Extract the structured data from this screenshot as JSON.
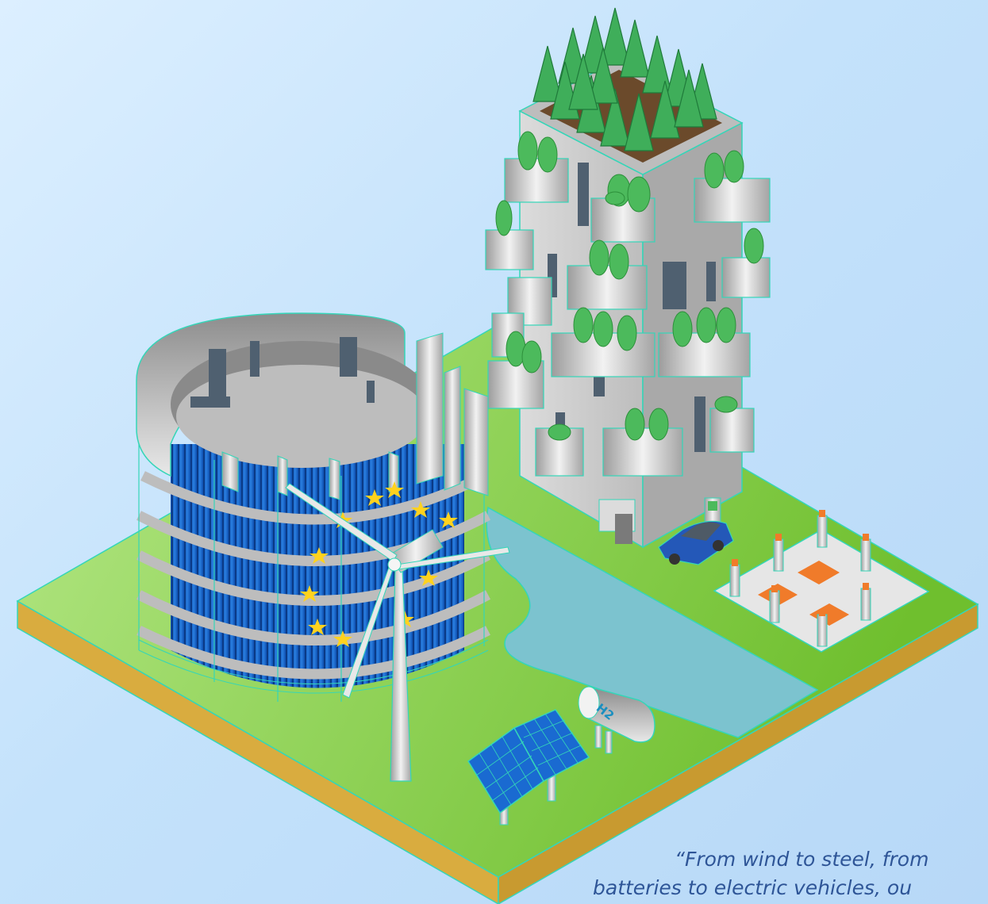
{
  "quote": {
    "line1": "“From wind to steel, from",
    "line2": "batteries to electric vehicles, ou"
  },
  "labels": {
    "hydrogen_tank": "H2"
  },
  "colors": {
    "sky": "#c4e2fb",
    "ground": "#8fd25c",
    "ground_edge": "#d4a93e",
    "water": "#7cc3cf",
    "building_facade": "#1a63c9",
    "eu_star": "#ffd21e",
    "concrete": "#cfcfcf",
    "trees": "#3fae5a",
    "outline": "#34d6b8",
    "quote_text": "#2e5597"
  },
  "icons": [
    "wind-turbine-icon",
    "solar-panel-icon",
    "hydrogen-tank-icon",
    "electric-car-icon",
    "charging-station-icon",
    "tree-icon",
    "eu-star-icon"
  ]
}
